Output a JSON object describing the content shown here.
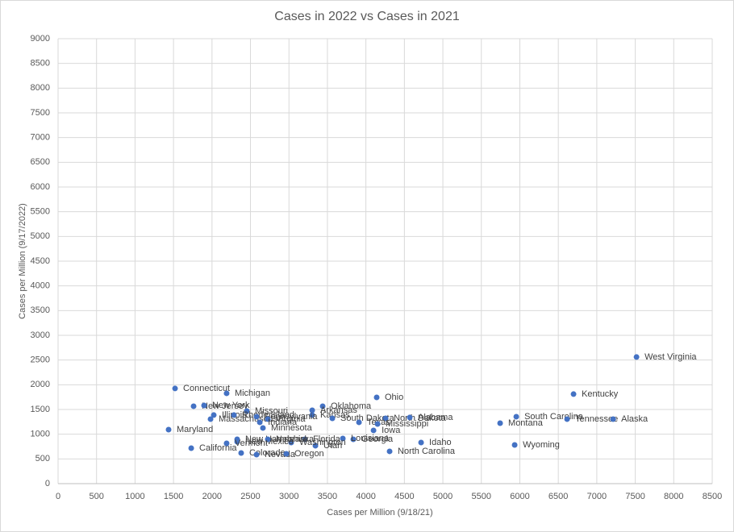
{
  "chart_data": {
    "type": "scatter",
    "title": "Cases in 2022 vs Cases in 2021",
    "x_label": "Cases per Million (9/18/21)",
    "y_label": "Cases per Million (9/17/2022)",
    "color": "#4472c4",
    "grid": true,
    "xlim": [
      0,
      8500
    ],
    "xticks": [
      0,
      500,
      1000,
      1500,
      2000,
      2500,
      3000,
      3500,
      4000,
      4500,
      5000,
      5500,
      6000,
      6500,
      7000,
      7500,
      8000,
      8500
    ],
    "ylim": [
      0,
      9000
    ],
    "yticks": [
      0,
      500,
      1000,
      1500,
      2000,
      2500,
      3000,
      3500,
      4000,
      4500,
      5000,
      5500,
      6000,
      6500,
      7000,
      7500,
      8000,
      8500,
      9000
    ],
    "labels": [
      "West Virginia",
      "Kentucky",
      "Connecticut",
      "Michigan",
      "New Jersey",
      "New York",
      "Ohio",
      "Oklahoma",
      "Missouri",
      "Arkansas",
      "Kansas",
      "South Dakota",
      "North Dakota",
      "Alabama",
      "Texas",
      "Mississippi",
      "South Carolina",
      "Montana",
      "Tennessee",
      "Alaska",
      "Iowa",
      "Maryland",
      "Minnesota",
      "Massachusetts",
      "Illinois",
      "Rhode Island",
      "Pennsylvania",
      "Virginia",
      "Indiana",
      "Georgia",
      "Florida",
      "Louisiana",
      "Idaho",
      "Wyoming",
      "North Carolina",
      "California",
      "Colorado",
      "Nevada",
      "Oregon",
      "Utah",
      "Washington",
      "New Mexico",
      "New Hampshire",
      "Nebraska",
      "Vermont"
    ],
    "x": [
      7516,
      6698,
      1520,
      2190,
      1761,
      1897,
      4140,
      3438,
      2453,
      3302,
      3302,
      3564,
      4256,
      4570,
      3910,
      4151,
      5954,
      5744,
      6614,
      7212,
      4099,
      1436,
      2662,
      1981,
      2023,
      2285,
      2579,
      2725,
      2621,
      3836,
      3208,
      3700,
      4717,
      5933,
      4308,
      1730,
      2379,
      2579,
      2966,
      3344,
      3029,
      2327,
      2327,
      2725,
      2190
    ],
    "y": [
      2561,
      1811,
      1925,
      1827,
      1566,
      1582,
      1745,
      1566,
      1468,
      1484,
      1387,
      1321,
      1321,
      1338,
      1240,
      1207,
      1354,
      1223,
      1305,
      1305,
      1077,
      1093,
      1126,
      1305,
      1387,
      1387,
      1354,
      1305,
      1240,
      897,
      897,
      913,
      832,
      783,
      653,
      718,
      620,
      587,
      603,
      767,
      832,
      848,
      897,
      897,
      815
    ]
  }
}
